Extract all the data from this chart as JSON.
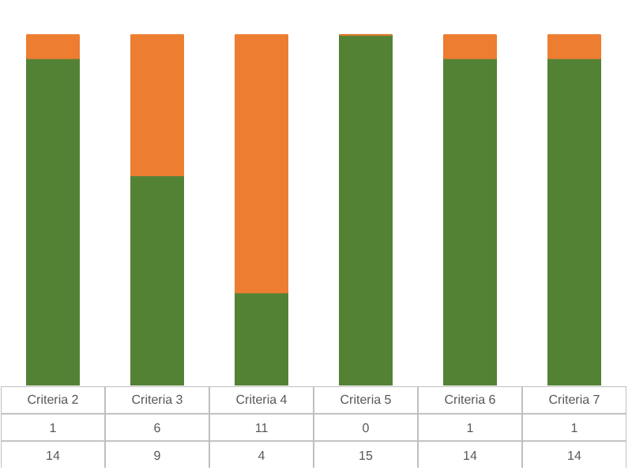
{
  "chart_data": {
    "type": "bar",
    "stacked": true,
    "data_labels": true,
    "tick_labels": false,
    "categories": [
      "Criteria 2",
      "Criteria 3",
      "Criteria 4",
      "Criteria 5",
      "Criteria 6",
      "Criteria 7"
    ],
    "series": [
      {
        "color": "#548235",
        "values": [
          14,
          9,
          4,
          15,
          14,
          14
        ]
      },
      {
        "color": "#ed7d31",
        "values": [
          1,
          6,
          11,
          0,
          1,
          1
        ]
      }
    ]
  }
}
